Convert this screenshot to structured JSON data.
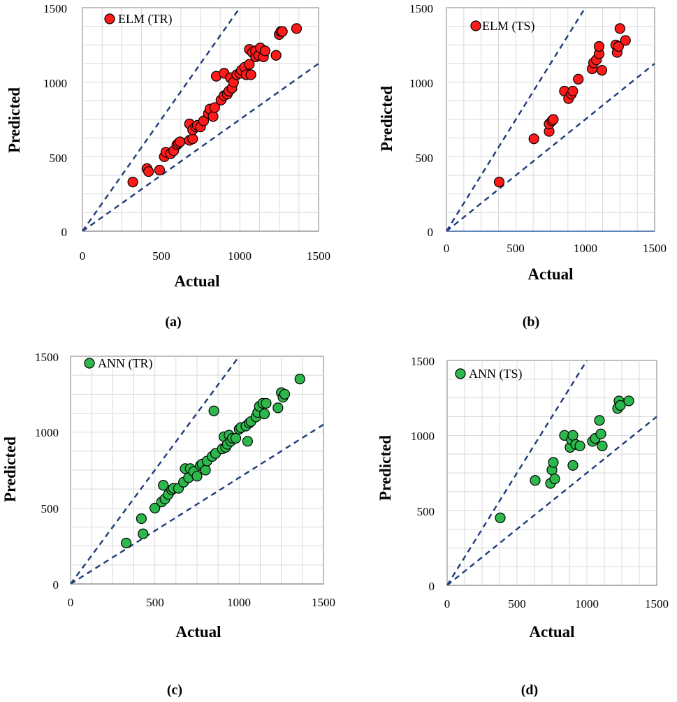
{
  "colors": {
    "elm_marker": "#ff1a1a",
    "ann_marker": "#2db84d",
    "bound_line": "#1f3b7a",
    "grid": "#d9d9d9",
    "frame": "#7f7f7f"
  },
  "chart_data": [
    {
      "id": "a",
      "type": "scatter",
      "caption": "(a)",
      "legend": "ELM (TR)",
      "xlabel": "Actual",
      "ylabel": "Predicted",
      "xlim": [
        0,
        1500
      ],
      "ylim": [
        0,
        1500
      ],
      "xticks": [
        "0",
        "500",
        "1000",
        "1500"
      ],
      "yticks": [
        "0",
        "500",
        "1000",
        "1500"
      ],
      "bound_slopes": [
        1.5,
        0.75
      ],
      "points": [
        [
          320,
          330
        ],
        [
          410,
          420
        ],
        [
          420,
          400
        ],
        [
          490,
          410
        ],
        [
          520,
          500
        ],
        [
          530,
          530
        ],
        [
          560,
          520
        ],
        [
          580,
          540
        ],
        [
          600,
          580
        ],
        [
          610,
          590
        ],
        [
          620,
          600
        ],
        [
          680,
          720
        ],
        [
          680,
          610
        ],
        [
          700,
          620
        ],
        [
          700,
          680
        ],
        [
          720,
          700
        ],
        [
          730,
          710
        ],
        [
          750,
          700
        ],
        [
          770,
          740
        ],
        [
          800,
          790
        ],
        [
          810,
          820
        ],
        [
          830,
          770
        ],
        [
          840,
          830
        ],
        [
          850,
          1040
        ],
        [
          880,
          880
        ],
        [
          900,
          910
        ],
        [
          900,
          1060
        ],
        [
          920,
          920
        ],
        [
          930,
          940
        ],
        [
          940,
          1030
        ],
        [
          950,
          960
        ],
        [
          960,
          1000
        ],
        [
          980,
          1050
        ],
        [
          1000,
          1060
        ],
        [
          1010,
          1080
        ],
        [
          1030,
          1100
        ],
        [
          1040,
          1050
        ],
        [
          1060,
          1220
        ],
        [
          1060,
          1120
        ],
        [
          1070,
          1050
        ],
        [
          1080,
          1200
        ],
        [
          1100,
          1170
        ],
        [
          1100,
          1210
        ],
        [
          1120,
          1180
        ],
        [
          1130,
          1230
        ],
        [
          1150,
          1170
        ],
        [
          1160,
          1210
        ],
        [
          1230,
          1180
        ],
        [
          1250,
          1320
        ],
        [
          1260,
          1340
        ],
        [
          1270,
          1340
        ],
        [
          1360,
          1360
        ]
      ]
    },
    {
      "id": "b",
      "type": "scatter",
      "caption": "(b)",
      "legend": "ELM (TS)",
      "xlabel": "Actual",
      "ylabel": "Predicted",
      "xlim": [
        0,
        1500
      ],
      "ylim": [
        0,
        1500
      ],
      "xticks": [
        "0",
        "500",
        "1000",
        "1500"
      ],
      "yticks": [
        "0",
        "500",
        "1000",
        "1500"
      ],
      "bound_slopes": [
        1.5,
        0.75
      ],
      "points": [
        [
          380,
          330
        ],
        [
          630,
          620
        ],
        [
          740,
          670
        ],
        [
          740,
          720
        ],
        [
          760,
          740
        ],
        [
          770,
          750
        ],
        [
          850,
          940
        ],
        [
          880,
          890
        ],
        [
          900,
          920
        ],
        [
          910,
          940
        ],
        [
          950,
          1020
        ],
        [
          1050,
          1090
        ],
        [
          1060,
          1130
        ],
        [
          1080,
          1150
        ],
        [
          1100,
          1190
        ],
        [
          1100,
          1240
        ],
        [
          1120,
          1080
        ],
        [
          1220,
          1250
        ],
        [
          1230,
          1200
        ],
        [
          1240,
          1240
        ],
        [
          1250,
          1360
        ],
        [
          1290,
          1280
        ]
      ]
    },
    {
      "id": "c",
      "type": "scatter",
      "caption": "(c)",
      "legend": "ANN (TR)",
      "xlabel": "Actual",
      "ylabel": "Predicted",
      "xlim": [
        0,
        1500
      ],
      "ylim": [
        0,
        1500
      ],
      "xticks": [
        "0",
        "500",
        "1000",
        "1500"
      ],
      "yticks": [
        "0",
        "500",
        "1000",
        "1500"
      ],
      "bound_slopes": [
        1.5,
        0.7
      ],
      "points": [
        [
          330,
          270
        ],
        [
          420,
          430
        ],
        [
          430,
          330
        ],
        [
          500,
          500
        ],
        [
          540,
          540
        ],
        [
          550,
          650
        ],
        [
          560,
          560
        ],
        [
          580,
          590
        ],
        [
          600,
          620
        ],
        [
          610,
          630
        ],
        [
          640,
          630
        ],
        [
          670,
          670
        ],
        [
          680,
          760
        ],
        [
          700,
          700
        ],
        [
          710,
          760
        ],
        [
          730,
          740
        ],
        [
          750,
          710
        ],
        [
          770,
          780
        ],
        [
          780,
          790
        ],
        [
          800,
          750
        ],
        [
          810,
          810
        ],
        [
          840,
          840
        ],
        [
          850,
          1140
        ],
        [
          860,
          860
        ],
        [
          900,
          890
        ],
        [
          910,
          970
        ],
        [
          920,
          900
        ],
        [
          930,
          920
        ],
        [
          940,
          980
        ],
        [
          950,
          940
        ],
        [
          960,
          960
        ],
        [
          980,
          960
        ],
        [
          1000,
          1020
        ],
        [
          1010,
          1030
        ],
        [
          1040,
          1040
        ],
        [
          1050,
          940
        ],
        [
          1060,
          1060
        ],
        [
          1070,
          1070
        ],
        [
          1100,
          1100
        ],
        [
          1110,
          1130
        ],
        [
          1120,
          1170
        ],
        [
          1140,
          1190
        ],
        [
          1150,
          1120
        ],
        [
          1160,
          1190
        ],
        [
          1230,
          1160
        ],
        [
          1250,
          1260
        ],
        [
          1260,
          1230
        ],
        [
          1270,
          1250
        ],
        [
          1360,
          1350
        ]
      ]
    },
    {
      "id": "d",
      "type": "scatter",
      "caption": "(d)",
      "legend": "ANN (TS)",
      "xlabel": "Actual",
      "ylabel": "Predicted",
      "xlim": [
        0,
        1500
      ],
      "ylim": [
        0,
        1500
      ],
      "xticks": [
        "0",
        "500",
        "1000",
        "1500"
      ],
      "yticks": [
        "0",
        "500",
        "1000",
        "1500"
      ],
      "bound_slopes": [
        1.5,
        0.75
      ],
      "points": [
        [
          380,
          450
        ],
        [
          630,
          700
        ],
        [
          740,
          680
        ],
        [
          750,
          770
        ],
        [
          760,
          820
        ],
        [
          770,
          710
        ],
        [
          840,
          1000
        ],
        [
          880,
          920
        ],
        [
          890,
          970
        ],
        [
          900,
          1000
        ],
        [
          900,
          800
        ],
        [
          920,
          940
        ],
        [
          950,
          930
        ],
        [
          1040,
          960
        ],
        [
          1060,
          980
        ],
        [
          1090,
          1100
        ],
        [
          1100,
          1010
        ],
        [
          1110,
          930
        ],
        [
          1220,
          1180
        ],
        [
          1230,
          1230
        ],
        [
          1240,
          1200
        ],
        [
          1300,
          1230
        ]
      ]
    }
  ]
}
